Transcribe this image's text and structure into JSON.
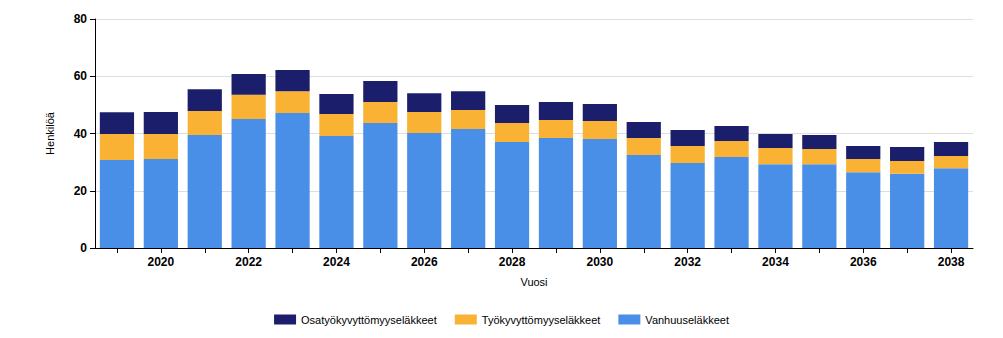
{
  "chart_data": {
    "type": "bar",
    "stacked": true,
    "grid": true,
    "legend": "bottom",
    "x_label": "Vuosi",
    "y_label": "Henkilöä",
    "categories": [
      null,
      "2020",
      null,
      "2022",
      null,
      "2024",
      null,
      "2026",
      null,
      "2028",
      null,
      "2030",
      null,
      "2032",
      null,
      "2034",
      null,
      "2036",
      null,
      "2038"
    ],
    "ylim": [
      0,
      80
    ],
    "yticks": [
      0,
      20,
      40,
      60,
      80
    ],
    "series": [
      {
        "name": "Osatyökyvyttömyyseläkkeet",
        "color": "#1b1f6b",
        "values": [
          7.6,
          7.7,
          7.6,
          7.3,
          7.4,
          7.0,
          7.3,
          6.6,
          6.6,
          6.3,
          6.3,
          5.9,
          5.6,
          5.6,
          5.2,
          4.9,
          4.9,
          4.5,
          4.9,
          4.9
        ]
      },
      {
        "name": "Työkyvyttömyyseläkkeet",
        "color": "#f9b233",
        "values": [
          9.1,
          8.7,
          8.4,
          8.4,
          7.6,
          7.7,
          7.3,
          7.3,
          6.6,
          6.7,
          6.3,
          6.3,
          5.9,
          5.9,
          5.6,
          5.6,
          5.3,
          4.6,
          4.5,
          4.2
        ]
      },
      {
        "name": "Vanhuuseläkkeet",
        "color": "#4a8fe7",
        "values": [
          30.7,
          31.1,
          39.5,
          45.1,
          47.2,
          39.1,
          43.7,
          40.2,
          41.6,
          37.0,
          38.4,
          38.1,
          32.5,
          29.7,
          31.8,
          29.3,
          29.3,
          26.5,
          25.9,
          27.9
        ]
      }
    ]
  }
}
